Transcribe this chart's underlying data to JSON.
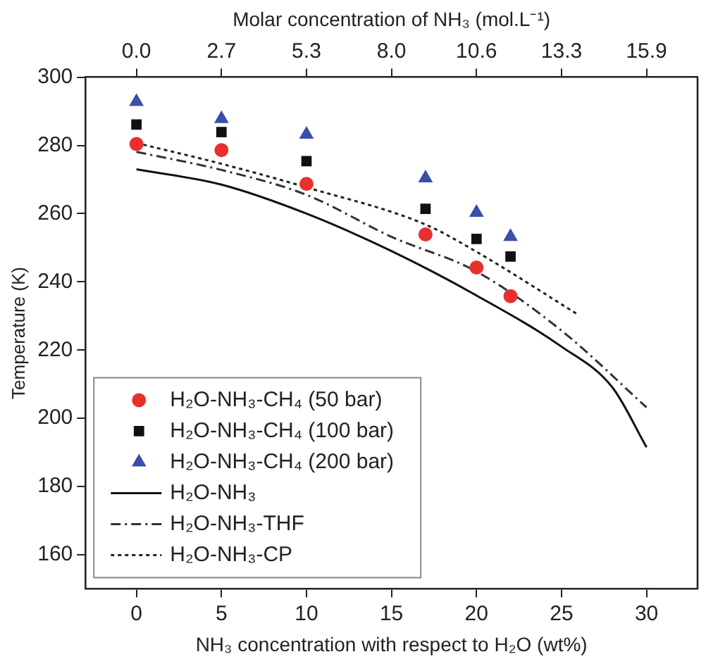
{
  "chart_data": {
    "type": "scatter",
    "xlabel": "NH₃ concentration with respect to H₂O (wt%)",
    "ylabel": "Temperature (K)",
    "x2label": "Molar concentration of NH₃ (mol.L⁻¹)",
    "xlim": [
      -3,
      33
    ],
    "xticks": [
      0,
      5,
      10,
      15,
      20,
      25,
      30
    ],
    "ylim": [
      150,
      300
    ],
    "yticks": [
      160,
      180,
      200,
      220,
      240,
      260,
      280,
      300
    ],
    "x2lim": [
      -1.59,
      17.49
    ],
    "x2ticks": [
      {
        "value": 0,
        "label": "0.0"
      },
      {
        "value": 2.65,
        "label": "2.7"
      },
      {
        "value": 5.3,
        "label": "5.3"
      },
      {
        "value": 7.95,
        "label": "8.0"
      },
      {
        "value": 10.6,
        "label": "10.6"
      },
      {
        "value": 13.25,
        "label": "13.3"
      },
      {
        "value": 15.9,
        "label": "15.9"
      }
    ],
    "grid": false,
    "legend": "bottom left",
    "series": [
      {
        "name": "H₂O-NH₃-CH₄ (50 bar)",
        "marker": "circle",
        "color": "#e8302e",
        "x": [
          0,
          5,
          10,
          17,
          20,
          22
        ],
        "values": [
          280.4,
          278.6,
          268.7,
          253.9,
          244.2,
          235.8
        ]
      },
      {
        "name": "H₂O-NH₃-CH₄ (100 bar)",
        "marker": "square",
        "color": "#111111",
        "x": [
          0,
          5,
          10,
          17,
          20,
          22
        ],
        "values": [
          286.1,
          283.9,
          275.4,
          261.4,
          252.6,
          247.4
        ]
      },
      {
        "name": "H₂O-NH₃-CH₄ (200 bar)",
        "marker": "triangle",
        "color": "#3b4fa8",
        "x": [
          0,
          5,
          10,
          17,
          20,
          22
        ],
        "values": [
          292.8,
          287.8,
          283.2,
          270.4,
          260.3,
          253.2
        ]
      },
      {
        "name": "H₂O-NH₃",
        "type": "line",
        "marker": "none",
        "line_style": "solid",
        "color": "#111111",
        "x": [
          0,
          5,
          10,
          15,
          20,
          25,
          28,
          30
        ],
        "values": [
          273,
          268.5,
          260,
          249,
          236,
          221,
          209,
          191.5
        ]
      },
      {
        "name": "H₂O-NH₃-THF",
        "type": "line",
        "marker": "none",
        "line_style": "dashdot",
        "color": "#333333",
        "x": [
          0,
          5,
          10,
          15,
          20,
          25,
          30
        ],
        "values": [
          278.1,
          272.8,
          265.5,
          253.2,
          243,
          225.7,
          203.2
        ]
      },
      {
        "name": "H₂O-NH₃-CP",
        "type": "line",
        "marker": "none",
        "line_style": "dotted",
        "color": "#222222",
        "x": [
          0,
          5,
          10,
          17,
          20,
          26
        ],
        "values": [
          280.7,
          274.6,
          267.7,
          256.8,
          248.8,
          230.3
        ]
      }
    ]
  }
}
